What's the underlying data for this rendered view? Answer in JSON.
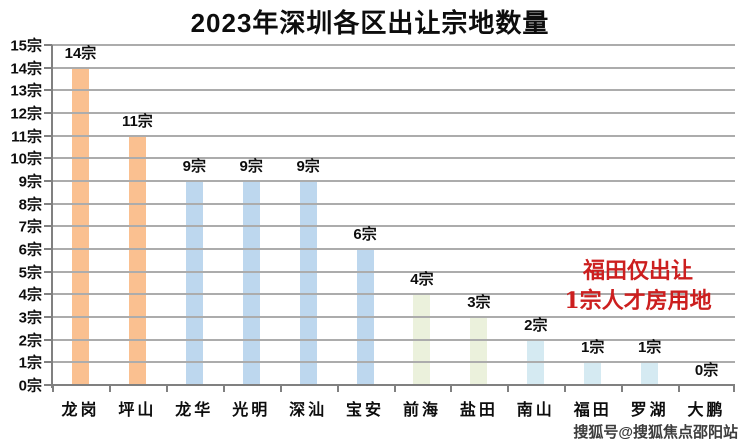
{
  "title": "2023年深圳各区出让宗地数量",
  "chart_data": {
    "type": "bar",
    "title": "2023年深圳各区出让宗地数量",
    "categories": [
      "龙岗",
      "坪山",
      "龙华",
      "光明",
      "深汕",
      "宝安",
      "前海",
      "盐田",
      "南山",
      "福田",
      "罗湖",
      "大鹏"
    ],
    "values": [
      14,
      11,
      9,
      9,
      9,
      6,
      4,
      3,
      2,
      1,
      1,
      0
    ],
    "value_labels": [
      "14宗",
      "11宗",
      "9宗",
      "9宗",
      "9宗",
      "6宗",
      "4宗",
      "3宗",
      "2宗",
      "1宗",
      "1宗",
      "0宗"
    ],
    "bar_colors": [
      "#FAC090",
      "#FAC090",
      "#BDD7EE",
      "#BDD7EE",
      "#BDD7EE",
      "#BDD7EE",
      "#EBF1DC",
      "#EBF1DC",
      "#D5EAF2",
      "#D5EAF2",
      "#D5EAF2",
      "#D5EAF2"
    ],
    "y_tick_labels": [
      "15宗",
      "14宗",
      "13宗",
      "12宗",
      "11宗",
      "10宗",
      "9宗",
      "8宗",
      "7宗",
      "6宗",
      "5宗",
      "4宗",
      "3宗",
      "2宗",
      "1宗",
      "0宗"
    ],
    "ylim": [
      0,
      15
    ],
    "unit_suffix": "宗",
    "grid": true,
    "colors": {
      "gridline": "#ACACAC",
      "axis": "#808080",
      "label_text": "#0D0D0D"
    }
  },
  "annotation": {
    "lines": [
      "福田仅出让",
      "1宗人才房用地"
    ],
    "color": "#CC1F1F"
  },
  "watermark": {
    "text": "搜狐号@搜狐焦点邵阳站"
  }
}
